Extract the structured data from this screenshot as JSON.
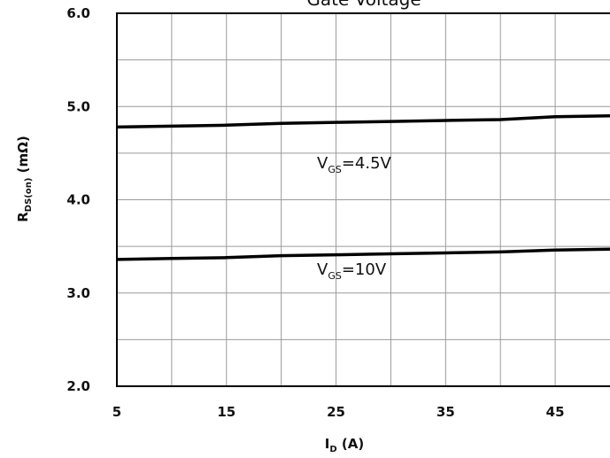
{
  "chart_data": {
    "type": "line",
    "title": "Gate Voltage",
    "xlabel_main": "I",
    "xlabel_sub": "D",
    "xlabel_unit": " (A)",
    "ylabel_main": "R",
    "ylabel_sub": "DS(on)",
    "ylabel_unit": " (mΩ)",
    "xlim": [
      5,
      50
    ],
    "ylim": [
      2.0,
      6.0
    ],
    "x_ticks": [
      5,
      15,
      25,
      35,
      45
    ],
    "x_tick_labels": [
      "5",
      "15",
      "25",
      "35",
      "45"
    ],
    "y_ticks": [
      2.0,
      3.0,
      4.0,
      5.0,
      6.0
    ],
    "y_tick_labels": [
      "2.0",
      "3.0",
      "4.0",
      "5.0",
      "6.0"
    ],
    "grid": true,
    "series": [
      {
        "annotation_main": "V",
        "annotation_sub": "GS",
        "annotation_value": "=4.5V",
        "x": [
          5,
          10,
          15,
          20,
          25,
          30,
          35,
          40,
          45,
          50
        ],
        "y": [
          4.78,
          4.79,
          4.8,
          4.82,
          4.83,
          4.84,
          4.85,
          4.86,
          4.89,
          4.9
        ]
      },
      {
        "annotation_main": "V",
        "annotation_sub": "GS",
        "annotation_value": "=10V",
        "x": [
          5,
          10,
          15,
          20,
          25,
          30,
          35,
          40,
          45,
          50
        ],
        "y": [
          3.36,
          3.37,
          3.38,
          3.4,
          3.41,
          3.42,
          3.43,
          3.44,
          3.46,
          3.47
        ]
      }
    ]
  }
}
